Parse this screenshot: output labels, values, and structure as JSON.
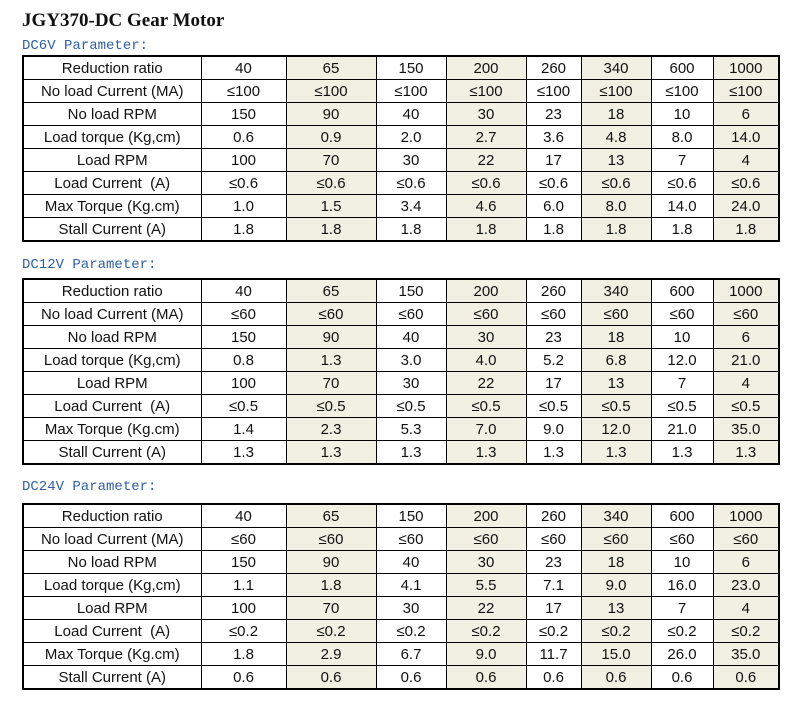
{
  "title": "JGY370-DC Gear Motor",
  "tables": [
    {
      "heading": "DC6V Parameter:",
      "rows": [
        [
          "Reduction ratio",
          "40",
          "65",
          "150",
          "200",
          "260",
          "340",
          "600",
          "1000"
        ],
        [
          "No load Current (MA)",
          "≤100",
          "≤100",
          "≤100",
          "≤100",
          "≤100",
          "≤100",
          "≤100",
          "≤100"
        ],
        [
          "No load RPM",
          "150",
          "90",
          "40",
          "30",
          "23",
          "18",
          "10",
          "6"
        ],
        [
          "Load torque (Kg,cm)",
          "0.6",
          "0.9",
          "2.0",
          "2.7",
          "3.6",
          "4.8",
          "8.0",
          "14.0"
        ],
        [
          "Load RPM",
          "100",
          "70",
          "30",
          "22",
          "17",
          "13",
          "7",
          "4"
        ],
        [
          "Load Current  (A)",
          "≤0.6",
          "≤0.6",
          "≤0.6",
          "≤0.6",
          "≤0.6",
          "≤0.6",
          "≤0.6",
          "≤0.6"
        ],
        [
          "Max Torque (Kg.cm)",
          "1.0",
          "1.5",
          "3.4",
          "4.6",
          "6.0",
          "8.0",
          "14.0",
          "24.0"
        ],
        [
          "Stall Current (A)",
          "1.8",
          "1.8",
          "1.8",
          "1.8",
          "1.8",
          "1.8",
          "1.8",
          "1.8"
        ]
      ]
    },
    {
      "heading": "DC12V Parameter:",
      "rows": [
        [
          "Reduction ratio",
          "40",
          "65",
          "150",
          "200",
          "260",
          "340",
          "600",
          "1000"
        ],
        [
          "No load Current (MA)",
          "≤60",
          "≤60",
          "≤60",
          "≤60",
          "≤60",
          "≤60",
          "≤60",
          "≤60"
        ],
        [
          "No load RPM",
          "150",
          "90",
          "40",
          "30",
          "23",
          "18",
          "10",
          "6"
        ],
        [
          "Load torque (Kg,cm)",
          "0.8",
          "1.3",
          "3.0",
          "4.0",
          "5.2",
          "6.8",
          "12.0",
          "21.0"
        ],
        [
          "Load RPM",
          "100",
          "70",
          "30",
          "22",
          "17",
          "13",
          "7",
          "4"
        ],
        [
          "Load Current  (A)",
          "≤0.5",
          "≤0.5",
          "≤0.5",
          "≤0.5",
          "≤0.5",
          "≤0.5",
          "≤0.5",
          "≤0.5"
        ],
        [
          "Max Torque (Kg.cm)",
          "1.4",
          "2.3",
          "5.3",
          "7.0",
          "9.0",
          "12.0",
          "21.0",
          "35.0"
        ],
        [
          "Stall Current (A)",
          "1.3",
          "1.3",
          "1.3",
          "1.3",
          "1.3",
          "1.3",
          "1.3",
          "1.3"
        ]
      ]
    },
    {
      "heading": "DC24V Parameter:",
      "rows": [
        [
          "Reduction ratio",
          "40",
          "65",
          "150",
          "200",
          "260",
          "340",
          "600",
          "1000"
        ],
        [
          "No load Current (MA)",
          "≤60",
          "≤60",
          "≤60",
          "≤60",
          "≤60",
          "≤60",
          "≤60",
          "≤60"
        ],
        [
          "No load RPM",
          "150",
          "90",
          "40",
          "30",
          "23",
          "18",
          "10",
          "6"
        ],
        [
          "Load torque (Kg,cm)",
          "1.1",
          "1.8",
          "4.1",
          "5.5",
          "7.1",
          "9.0",
          "16.0",
          "23.0"
        ],
        [
          "Load RPM",
          "100",
          "70",
          "30",
          "22",
          "17",
          "13",
          "7",
          "4"
        ],
        [
          "Load Current  (A)",
          "≤0.2",
          "≤0.2",
          "≤0.2",
          "≤0.2",
          "≤0.2",
          "≤0.2",
          "≤0.2",
          "≤0.2"
        ],
        [
          "Max Torque (Kg.cm)",
          "1.8",
          "2.9",
          "6.7",
          "9.0",
          "11.7",
          "15.0",
          "26.0",
          "35.0"
        ],
        [
          "Stall Current (A)",
          "0.6",
          "0.6",
          "0.6",
          "0.6",
          "0.6",
          "0.6",
          "0.6",
          "0.6"
        ]
      ]
    }
  ]
}
